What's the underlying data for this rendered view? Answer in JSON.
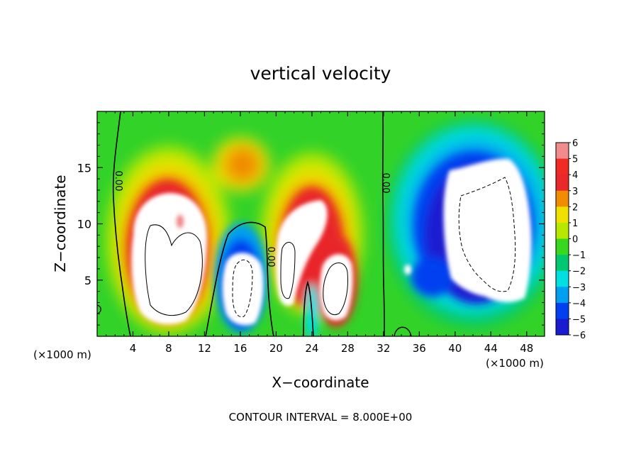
{
  "chart_data": {
    "type": "heatmap",
    "title": "vertical velocity",
    "xlabel": "X−coordinate",
    "ylabel": "Z−coordinate",
    "x_unit_left": "(×1000 m)",
    "x_unit_right": "(×1000 m)",
    "footer": "CONTOUR INTERVAL = 8.000E+00",
    "xlim": [
      0,
      50
    ],
    "ylim": [
      0,
      20
    ],
    "x_ticks": [
      4,
      8,
      12,
      16,
      20,
      24,
      28,
      32,
      36,
      40,
      44,
      48
    ],
    "y_ticks": [
      5,
      10,
      15
    ],
    "colorbar": {
      "levels": [
        6,
        5,
        4,
        3,
        2,
        1,
        0,
        -1,
        -2,
        -3,
        -4,
        -5,
        -6
      ],
      "labels": [
        "6",
        "5",
        "4",
        "3",
        "2",
        "1",
        "0",
        "−1",
        "−2",
        "−3",
        "−4",
        "−5",
        "−6"
      ],
      "colors": [
        "#f08c8c",
        "#f02a24",
        "#e8282a",
        "#f08c00",
        "#f0e000",
        "#b8e800",
        "#38d81e",
        "#00c870",
        "#00e0e0",
        "#00a0f0",
        "#0040f0",
        "#1a1ad0",
        "#7a10b8"
      ]
    },
    "contour_labels": [
      "0.00",
      "0.00",
      "0.00"
    ],
    "features": [
      {
        "kind": "updraft",
        "x": 9,
        "z": 8,
        "w_max": 6
      },
      {
        "kind": "downdraft",
        "x": 16,
        "z": 4.5,
        "w_min": -6
      },
      {
        "kind": "updraft",
        "x": 22,
        "z": 9,
        "w_max": 6
      },
      {
        "kind": "updraft",
        "x": 26.5,
        "z": 5.5,
        "w_max": 6
      },
      {
        "kind": "downdraft",
        "x": 44.5,
        "z": 10,
        "w_min": -6
      }
    ]
  }
}
